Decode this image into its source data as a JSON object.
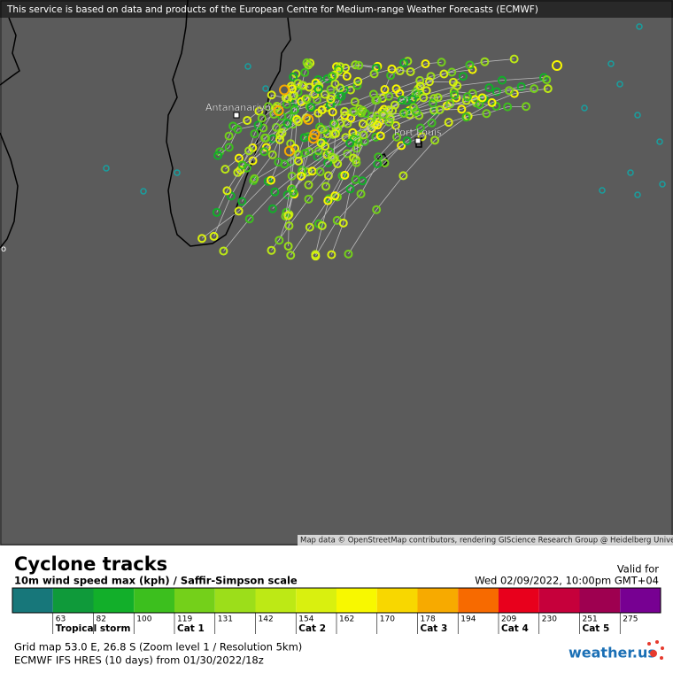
{
  "banner": "This service is based on data and products of the European Centre for Medium-range Weather Forecasts (ECMWF)",
  "map": {
    "labels": [
      "Antananarivo",
      "Port Louis"
    ],
    "edge_label": "o",
    "attribution": "Map data © OpenStreetMap contributors, rendering GIScience Research Group @ Heidelberg University"
  },
  "legend": {
    "title": "Cyclone tracks",
    "subtitle": "10m wind speed max (kph) / Saffir-Simpson scale",
    "valid_label": "Valid for",
    "valid_time": "Wed 02/09/2022, 10:00pm GMT+04",
    "scale": {
      "colors": [
        "#17777a",
        "#0f9a3a",
        "#12af2a",
        "#3cbf1e",
        "#74d01a",
        "#9cde1a",
        "#bde915",
        "#d9f00f",
        "#f8f800",
        "#f8d700",
        "#f7aa00",
        "#f76a00",
        "#e8001c",
        "#c6003b",
        "#9e0050",
        "#770092"
      ],
      "ticks": [
        63,
        82,
        100,
        119,
        131,
        142,
        154,
        162,
        170,
        178,
        194,
        209,
        230,
        251,
        275
      ],
      "categories": [
        {
          "label": "Tropical storm",
          "start": 1
        },
        {
          "label": "Cat 1",
          "start": 4
        },
        {
          "label": "Cat 2",
          "start": 7
        },
        {
          "label": "Cat 3",
          "start": 10
        },
        {
          "label": "Cat 4",
          "start": 12
        },
        {
          "label": "Cat 5",
          "start": 14
        }
      ]
    }
  },
  "footer": {
    "grid": "Grid map 53.0 E, 26.8 S (Zoom level 1 / Resolution 5km)",
    "model": "ECMWF IFS HRES (10 days) from 01/30/2022/18z",
    "logo": "weather.us"
  }
}
